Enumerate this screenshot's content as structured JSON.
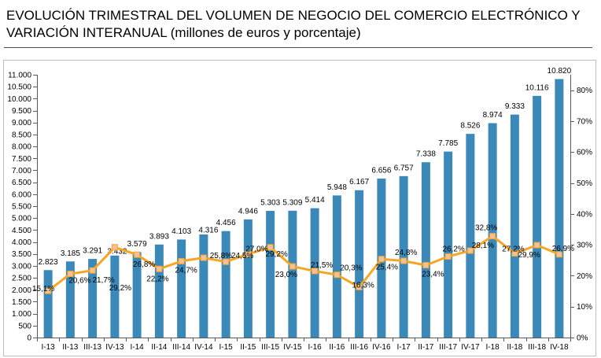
{
  "chart_data": {
    "type": "bar",
    "title": "EVOLUCIÓN TRIMESTRAL DEL VOLUMEN DE NEGOCIO DEL COMERCIO ELECTRÓNICO Y\nVARIACIÓN INTERANUAL (millones de euros y porcentaje)",
    "categories": [
      "I-13",
      "II-13",
      "III-13",
      "IV-13",
      "I-14",
      "II-14",
      "III-14",
      "IV-14",
      "I-15",
      "II-15",
      "III-15",
      "IV-15",
      "I-16",
      "II-16",
      "III-16",
      "IV-16",
      "I-17",
      "II-17",
      "III-17",
      "IV-17",
      "I-18",
      "II-18",
      "III-18",
      "IV-18"
    ],
    "series": [
      {
        "type": "bar",
        "y_axis": "left",
        "values": [
          2823,
          3185,
          3291,
          3432,
          3579,
          3893,
          4103,
          4316,
          4456,
          4946,
          5303,
          5309,
          5414,
          5948,
          6167,
          6656,
          6757,
          7338,
          7785,
          8526,
          8974,
          9333,
          10116,
          10820
        ],
        "labels": [
          "2.823",
          "3.185",
          "3.291",
          "3.432",
          "3.579",
          "3.893",
          "4.103",
          "4.316",
          "4.456",
          "4.946",
          "5.303",
          "5.309",
          "5.414",
          "5.948",
          "6.167",
          "6.656",
          "6.757",
          "7.338",
          "7.785",
          "8.526",
          "8.974",
          "9.333",
          "10.116",
          "10.820"
        ]
      },
      {
        "type": "line",
        "y_axis": "right",
        "values": [
          15.1,
          20.6,
          21.7,
          29.2,
          26.8,
          22.2,
          24.7,
          25.8,
          24.5,
          27.0,
          29.2,
          23.0,
          21.5,
          20.3,
          16.3,
          25.4,
          24.8,
          23.4,
          26.2,
          28.1,
          32.8,
          27.2,
          29.9,
          26.9
        ],
        "labels": [
          "15,1%",
          "20,6%",
          "21,7%",
          "29,2%",
          "26,8%",
          "22,2%",
          "24,7%",
          "25,8%",
          "24,5%",
          "27,0%",
          "29,2%",
          "23,0%",
          "21,5%",
          "20,3%",
          "16,3%",
          "25,4%",
          "24,8%",
          "23,4%",
          "26,2%",
          "28,1%",
          "32,8%",
          "27,2%",
          "29,9%",
          "26,9%"
        ]
      }
    ],
    "y_left": {
      "lim": [
        0,
        11000
      ],
      "ticks": [
        0,
        500,
        1000,
        1500,
        2000,
        2500,
        3000,
        3500,
        4000,
        4500,
        5000,
        5500,
        6000,
        6500,
        7000,
        7500,
        8000,
        8500,
        9000,
        9500,
        10000,
        10500,
        11000
      ],
      "tick_labels": [
        "0",
        "500",
        "1.000",
        "1.500",
        "2.000",
        "2.500",
        "3.000",
        "3.500",
        "4.000",
        "4.500",
        "5.000",
        "5.500",
        "6.000",
        "6.500",
        "7.000",
        "7.500",
        "8.000",
        "8.500",
        "9.000",
        "9.500",
        "10.000",
        "10.500",
        "11.000"
      ]
    },
    "y_right": {
      "lim": [
        0,
        85
      ],
      "ticks": [
        0,
        10,
        20,
        30,
        40,
        50,
        60,
        70,
        80
      ],
      "tick_labels": [
        "0%",
        "10%",
        "20%",
        "30%",
        "40%",
        "50%",
        "60%",
        "70%",
        "80%"
      ]
    },
    "grid": false,
    "colors": {
      "bars": "#3a89b9",
      "line": "#f5a623",
      "markers": "#f8c09a",
      "axes": "#595959",
      "frame": "#bfbfbf"
    }
  }
}
